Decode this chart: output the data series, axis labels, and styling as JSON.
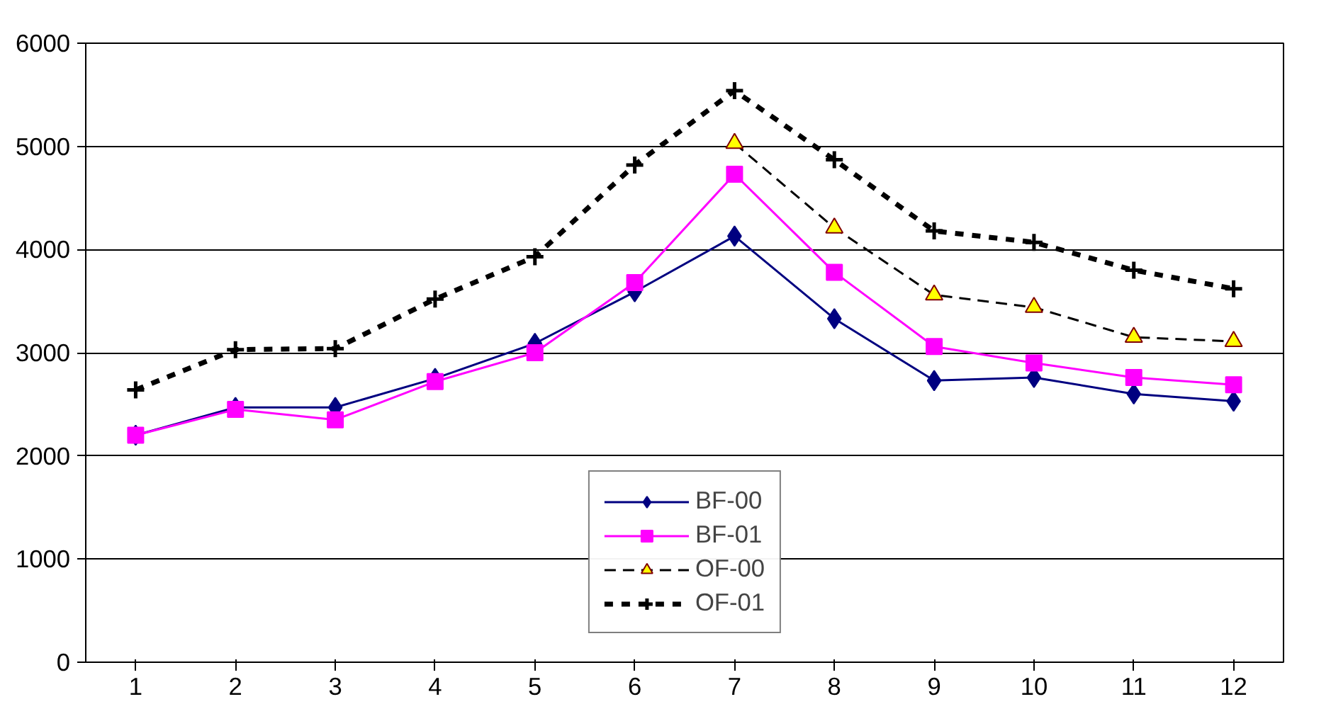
{
  "chart_data": {
    "type": "line",
    "x": [
      1,
      2,
      3,
      4,
      5,
      6,
      7,
      8,
      9,
      10,
      11,
      12
    ],
    "series": [
      {
        "name": "BF-00",
        "color": "#000080",
        "marker": "diamond",
        "line_style": "solid",
        "values": [
          2200,
          2470,
          2470,
          2750,
          3090,
          3590,
          4130,
          3330,
          2730,
          2760,
          2600,
          2530
        ]
      },
      {
        "name": "BF-01",
        "color": "#ff00ff",
        "marker": "square",
        "line_style": "solid",
        "values": [
          2200,
          2450,
          2350,
          2720,
          3000,
          3680,
          4730,
          3780,
          3060,
          2900,
          2760,
          2690
        ]
      },
      {
        "name": "OF-00",
        "color": "#000000",
        "marker": "triangle",
        "line_style": "dashed",
        "values": [
          null,
          null,
          null,
          null,
          null,
          null,
          5030,
          4210,
          3560,
          3440,
          3150,
          3110
        ]
      },
      {
        "name": "OF-01",
        "color": "#000000",
        "marker": "cross",
        "line_style": "dashed",
        "values": [
          2640,
          3030,
          3040,
          3520,
          3930,
          4820,
          5540,
          4870,
          4180,
          4070,
          3800,
          3620
        ]
      }
    ],
    "xlim": [
      0.5,
      12.5
    ],
    "xticks": [
      1,
      2,
      3,
      4,
      5,
      6,
      7,
      8,
      9,
      10,
      11,
      12
    ],
    "ylim": [
      0,
      6000
    ],
    "yticks": [
      0,
      1000,
      2000,
      3000,
      4000,
      5000,
      6000
    ],
    "grid": "y",
    "legend": "bottom"
  }
}
